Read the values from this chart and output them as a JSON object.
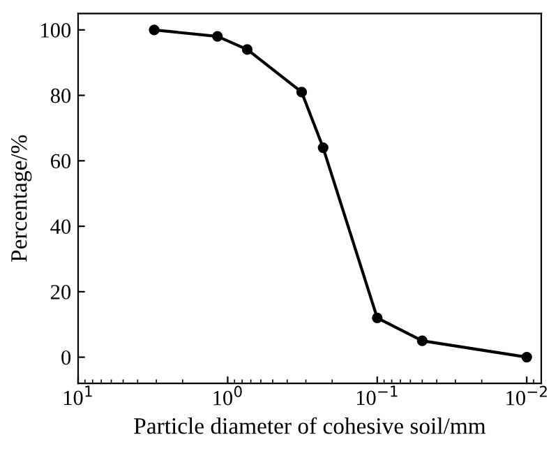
{
  "chart_data": {
    "type": "line",
    "xlabel": "Particle diameter of cohesive soil/mm",
    "ylabel": "Percentage/%",
    "log": "x",
    "marker": "circle",
    "line_style": "solid",
    "grid": false,
    "legend": false,
    "series": [
      {
        "color": "#000000",
        "x": [
          3.1,
          1.17,
          0.74,
          0.32,
          0.23,
          0.1,
          0.05,
          0.01
        ],
        "values": [
          100,
          98,
          94,
          81,
          64,
          12,
          5,
          0
        ]
      }
    ],
    "xlim": [
      10,
      0.008
    ],
    "ylim": [
      -8,
      105
    ],
    "xticks": [
      {
        "value": 10,
        "label": "10$^{1}$"
      },
      {
        "value": 1,
        "label": "10$^{0}$"
      },
      {
        "value": 0.1,
        "label": "10$^{−1}$"
      },
      {
        "value": 0.01,
        "label": "10$^{−2}$"
      }
    ],
    "yticks": [
      0,
      20,
      40,
      60,
      80,
      100
    ]
  }
}
